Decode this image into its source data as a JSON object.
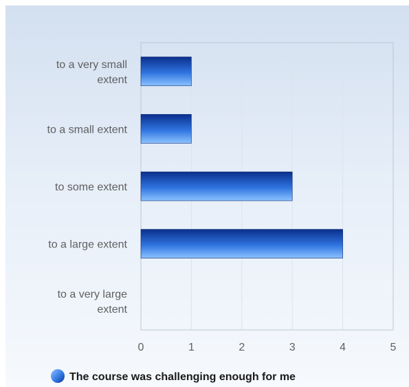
{
  "chart_data": {
    "type": "bar",
    "orientation": "horizontal",
    "categories": [
      [
        "to a very small",
        "extent"
      ],
      [
        "to a small extent"
      ],
      [
        "to some extent"
      ],
      [
        "to a large extent"
      ],
      [
        "to a very large",
        "extent"
      ]
    ],
    "series": [
      {
        "name": "The course was challenging enough for me",
        "values": [
          1,
          1,
          3,
          4,
          0
        ]
      }
    ],
    "x_ticks": [
      "0",
      "1",
      "2",
      "3",
      "4",
      "5"
    ],
    "xlim": [
      0,
      5
    ],
    "grid": true,
    "legend": "bottom",
    "colors": {
      "bar_top": "#0a2f8c",
      "bar_mid": "#2f74e0",
      "bar_bottom": "#8cc2ff",
      "grid": "#dde3ea",
      "axis": "#bcc6d2"
    }
  }
}
